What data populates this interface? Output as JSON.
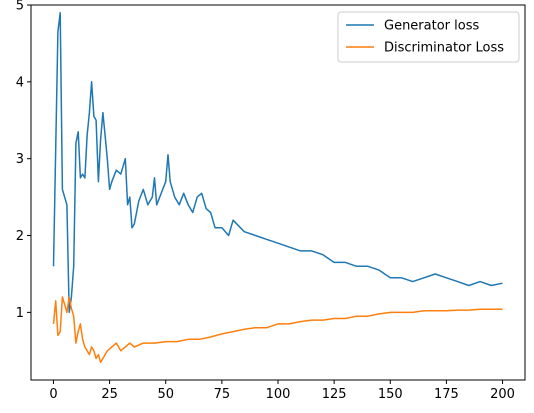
{
  "chart_data": {
    "type": "line",
    "title": "",
    "xlabel": "",
    "ylabel": "",
    "xlim": [
      -10,
      210
    ],
    "ylim": [
      0.12,
      5.0
    ],
    "x_ticks": [
      0,
      25,
      50,
      75,
      100,
      125,
      150,
      175,
      200
    ],
    "y_ticks": [
      1,
      2,
      3,
      4,
      5
    ],
    "grid": false,
    "legend": "top-right",
    "series": [
      {
        "name": "Generator loss",
        "color": "#1f77b4",
        "x": [
          0,
          2,
          3,
          4,
          6,
          7,
          8,
          9,
          10,
          11,
          12,
          13,
          14,
          15,
          16,
          17,
          18,
          19,
          20,
          21,
          22,
          23,
          24,
          25,
          26,
          28,
          30,
          32,
          33,
          34,
          35,
          36,
          38,
          40,
          42,
          44,
          45,
          46,
          48,
          50,
          51,
          52,
          54,
          56,
          58,
          60,
          62,
          64,
          66,
          68,
          70,
          72,
          75,
          78,
          80,
          85,
          90,
          95,
          100,
          105,
          110,
          115,
          120,
          125,
          130,
          135,
          140,
          145,
          150,
          155,
          160,
          165,
          170,
          175,
          180,
          185,
          190,
          195,
          200
        ],
        "values": [
          1.6,
          4.65,
          4.9,
          2.6,
          2.4,
          1.0,
          1.2,
          1.6,
          3.2,
          3.35,
          2.75,
          2.8,
          2.75,
          3.3,
          3.6,
          4.0,
          3.55,
          3.5,
          2.7,
          3.25,
          3.6,
          3.3,
          3.0,
          2.6,
          2.7,
          2.85,
          2.8,
          3.0,
          2.4,
          2.5,
          2.1,
          2.15,
          2.45,
          2.6,
          2.4,
          2.5,
          2.75,
          2.4,
          2.55,
          2.7,
          3.05,
          2.7,
          2.5,
          2.4,
          2.55,
          2.4,
          2.3,
          2.5,
          2.55,
          2.35,
          2.3,
          2.1,
          2.1,
          2.0,
          2.2,
          2.05,
          2.0,
          1.95,
          1.9,
          1.85,
          1.8,
          1.8,
          1.75,
          1.65,
          1.65,
          1.6,
          1.6,
          1.55,
          1.45,
          1.45,
          1.4,
          1.45,
          1.5,
          1.45,
          1.4,
          1.35,
          1.4,
          1.35,
          1.38
        ]
      },
      {
        "name": "Discriminator Loss",
        "color": "#ff7f0e",
        "x": [
          0,
          1,
          2,
          3,
          4,
          5,
          6,
          7,
          8,
          9,
          10,
          11,
          12,
          13,
          14,
          15,
          16,
          17,
          18,
          19,
          20,
          21,
          22,
          24,
          26,
          28,
          30,
          32,
          34,
          36,
          40,
          45,
          50,
          55,
          60,
          65,
          70,
          75,
          80,
          85,
          90,
          95,
          100,
          105,
          110,
          115,
          120,
          125,
          130,
          135,
          140,
          145,
          150,
          155,
          160,
          165,
          170,
          175,
          180,
          185,
          190,
          195,
          200
        ],
        "values": [
          0.85,
          1.15,
          0.7,
          0.75,
          1.2,
          1.1,
          1.0,
          1.2,
          1.05,
          0.95,
          0.6,
          0.75,
          0.85,
          0.65,
          0.55,
          0.5,
          0.45,
          0.55,
          0.5,
          0.4,
          0.45,
          0.35,
          0.4,
          0.5,
          0.55,
          0.6,
          0.5,
          0.55,
          0.6,
          0.55,
          0.6,
          0.6,
          0.62,
          0.62,
          0.65,
          0.65,
          0.68,
          0.72,
          0.75,
          0.78,
          0.8,
          0.8,
          0.85,
          0.85,
          0.88,
          0.9,
          0.9,
          0.92,
          0.92,
          0.95,
          0.95,
          0.98,
          1.0,
          1.0,
          1.0,
          1.02,
          1.02,
          1.02,
          1.03,
          1.03,
          1.04,
          1.04,
          1.04
        ]
      }
    ]
  }
}
